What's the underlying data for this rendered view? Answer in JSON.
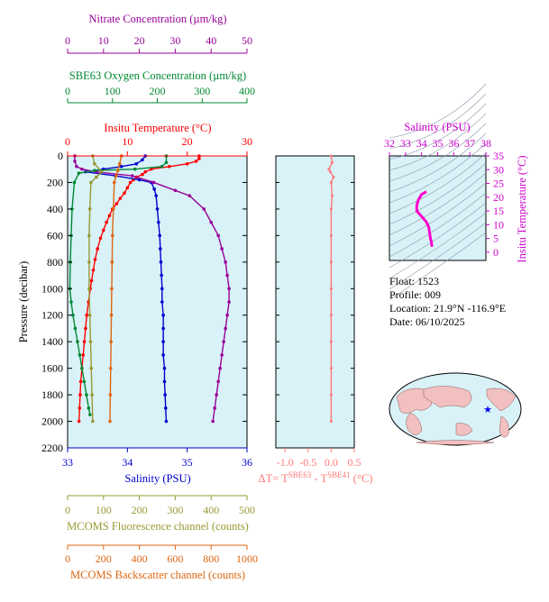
{
  "chart_data": [
    {
      "type": "line",
      "name": "profile",
      "ylabel": "Pressure (decibar)",
      "ylim": [
        2200,
        0
      ],
      "y_ticks": [
        0,
        200,
        400,
        600,
        800,
        1000,
        1200,
        1400,
        1600,
        1800,
        2000,
        2200
      ],
      "axes": {
        "temperature": {
          "title": "Insitu Temperature (°C)",
          "range": [
            0,
            30
          ],
          "ticks": [
            0,
            10,
            20,
            30
          ],
          "color": "#ff0000"
        },
        "salinity": {
          "title": "Salinity (PSU)",
          "range": [
            33,
            36
          ],
          "ticks": [
            33,
            34,
            35,
            36
          ],
          "color": "#0000cc"
        },
        "nitrate": {
          "title": "Nitrate Concentration (µm/kg)",
          "range": [
            0,
            50
          ],
          "ticks": [
            0,
            10,
            20,
            30,
            40,
            50
          ],
          "color": "#990099"
        },
        "oxygen": {
          "title": "SBE63 Oxygen Concentration (µm/kg)",
          "range": [
            0,
            400
          ],
          "ticks": [
            0,
            100,
            200,
            300,
            400
          ],
          "color": "#008833"
        },
        "fluorescence": {
          "title": "MCOMS Fluorescence channel (counts)",
          "range": [
            0,
            500
          ],
          "ticks": [
            0,
            100,
            200,
            300,
            400,
            500
          ],
          "color": "#999933"
        },
        "backscatter": {
          "title": "MCOMS Backscatter channel (counts)",
          "range": [
            0,
            1000
          ],
          "ticks": [
            0,
            200,
            400,
            600,
            800,
            1000
          ],
          "color": "#dd6611"
        }
      },
      "series": [
        {
          "key": "temperature",
          "color": "#ff0000",
          "points": [
            [
              22,
              0
            ],
            [
              22,
              20
            ],
            [
              21.5,
              40
            ],
            [
              20,
              60
            ],
            [
              17,
              80
            ],
            [
              14,
              100
            ],
            [
              13,
              120
            ],
            [
              12.5,
              140
            ],
            [
              11.5,
              160
            ],
            [
              11,
              180
            ],
            [
              10.5,
              200
            ],
            [
              10,
              240
            ],
            [
              9.5,
              280
            ],
            [
              8.8,
              320
            ],
            [
              8.2,
              360
            ],
            [
              7.5,
              400
            ],
            [
              7,
              450
            ],
            [
              6.5,
              500
            ],
            [
              6,
              560
            ],
            [
              5.5,
              620
            ],
            [
              5,
              700
            ],
            [
              4.6,
              780
            ],
            [
              4.3,
              860
            ],
            [
              4,
              940
            ],
            [
              3.8,
              1000
            ],
            [
              3.5,
              1100
            ],
            [
              3.2,
              1200
            ],
            [
              3,
              1300
            ],
            [
              2.8,
              1400
            ],
            [
              2.6,
              1500
            ],
            [
              2.4,
              1600
            ],
            [
              2.2,
              1700
            ],
            [
              2.1,
              1800
            ],
            [
              2,
              1900
            ],
            [
              1.9,
              2000
            ]
          ]
        },
        {
          "key": "salinity",
          "color": "#0000cc",
          "points": [
            [
              34.3,
              0
            ],
            [
              34.25,
              30
            ],
            [
              34.15,
              60
            ],
            [
              33.9,
              80
            ],
            [
              33.6,
              100
            ],
            [
              33.3,
              120
            ],
            [
              33.8,
              150
            ],
            [
              34.2,
              180
            ],
            [
              34.4,
              200
            ],
            [
              34.45,
              250
            ],
            [
              34.48,
              300
            ],
            [
              34.5,
              400
            ],
            [
              34.52,
              500
            ],
            [
              34.54,
              600
            ],
            [
              34.55,
              700
            ],
            [
              34.56,
              800
            ],
            [
              34.57,
              900
            ],
            [
              34.58,
              1000
            ],
            [
              34.58,
              1100
            ],
            [
              34.6,
              1200
            ],
            [
              34.6,
              1300
            ],
            [
              34.6,
              1400
            ],
            [
              34.6,
              1500
            ],
            [
              34.62,
              1600
            ],
            [
              34.62,
              1700
            ],
            [
              34.63,
              1800
            ],
            [
              34.64,
              1900
            ],
            [
              34.65,
              2000
            ]
          ]
        },
        {
          "key": "nitrate",
          "color": "#990099",
          "points": [
            [
              2,
              0
            ],
            [
              2,
              40
            ],
            [
              2.5,
              80
            ],
            [
              4,
              100
            ],
            [
              8,
              120
            ],
            [
              18,
              150
            ],
            [
              24,
              200
            ],
            [
              30,
              260
            ],
            [
              34,
              300
            ],
            [
              38,
              400
            ],
            [
              40,
              500
            ],
            [
              42,
              600
            ],
            [
              43,
              700
            ],
            [
              44,
              800
            ],
            [
              44.5,
              900
            ],
            [
              45,
              1000
            ],
            [
              45,
              1100
            ],
            [
              44.5,
              1200
            ],
            [
              44,
              1300
            ],
            [
              43.5,
              1400
            ],
            [
              43,
              1500
            ],
            [
              42.5,
              1600
            ],
            [
              42,
              1700
            ],
            [
              41.5,
              1800
            ],
            [
              41,
              1900
            ],
            [
              40.5,
              2000
            ]
          ]
        },
        {
          "key": "oxygen",
          "color": "#008833",
          "points": [
            [
              220,
              0
            ],
            [
              220,
              50
            ],
            [
              210,
              80
            ],
            [
              150,
              100
            ],
            [
              60,
              110
            ],
            [
              25,
              130
            ],
            [
              15,
              200
            ],
            [
              10,
              400
            ],
            [
              8,
              600
            ],
            [
              6,
              800
            ],
            [
              5,
              1000
            ],
            [
              8,
              1100
            ],
            [
              12,
              1200
            ],
            [
              17,
              1300
            ],
            [
              22,
              1400
            ],
            [
              27,
              1500
            ],
            [
              32,
              1600
            ],
            [
              37,
              1700
            ],
            [
              42,
              1800
            ],
            [
              47,
              1900
            ],
            [
              50,
              1950
            ]
          ]
        },
        {
          "key": "fluorescence",
          "color": "#999933",
          "points": [
            [
              70,
              0
            ],
            [
              75,
              60
            ],
            [
              95,
              120
            ],
            [
              80,
              160
            ],
            [
              65,
              200
            ],
            [
              62,
              400
            ],
            [
              60,
              600
            ],
            [
              60,
              800
            ],
            [
              60,
              1000
            ],
            [
              62,
              1200
            ],
            [
              64,
              1400
            ],
            [
              66,
              1600
            ],
            [
              68,
              1800
            ],
            [
              70,
              2000
            ]
          ]
        },
        {
          "key": "backscatter",
          "color": "#dd6611",
          "points": [
            [
              300,
              0
            ],
            [
              290,
              60
            ],
            [
              280,
              110
            ],
            [
              270,
              150
            ],
            [
              260,
              200
            ],
            [
              255,
              400
            ],
            [
              250,
              600
            ],
            [
              248,
              800
            ],
            [
              246,
              1000
            ],
            [
              244,
              1200
            ],
            [
              242,
              1400
            ],
            [
              240,
              1600
            ],
            [
              238,
              1800
            ],
            [
              236,
              2000
            ]
          ]
        }
      ]
    },
    {
      "type": "line",
      "name": "temperature-difference",
      "xlabel": "ΔT= T^SBE63 - T^SBE41 (°C)",
      "xlim": [
        -1.2,
        0.5
      ],
      "x_ticks": [
        -1.0,
        -0.5,
        0.0,
        0.5
      ],
      "x_tick_labels": [
        "-1.0",
        "-0.5",
        "0.0",
        "0.5"
      ],
      "color": "#ff7777",
      "points": [
        [
          0,
          0
        ],
        [
          0.02,
          50
        ],
        [
          -0.05,
          100
        ],
        [
          -0.02,
          120
        ],
        [
          0.05,
          160
        ],
        [
          0,
          200
        ],
        [
          0.02,
          300
        ],
        [
          0,
          400
        ],
        [
          0,
          600
        ],
        [
          0,
          800
        ],
        [
          0,
          1000
        ],
        [
          0,
          1200
        ],
        [
          0,
          1400
        ],
        [
          0,
          1600
        ],
        [
          0,
          1800
        ],
        [
          0,
          2000
        ]
      ]
    },
    {
      "type": "line",
      "name": "theta-s",
      "xlabel": "Salinity (PSU)",
      "ylabel": "Insitu Temperature (°C)",
      "xlim": [
        32,
        38
      ],
      "ylim": [
        -3,
        35
      ],
      "x_ticks": [
        32,
        33,
        34,
        35,
        36,
        37,
        38
      ],
      "y_ticks": [
        0,
        5,
        10,
        15,
        20,
        25,
        30,
        35
      ],
      "color": "#ff00cc",
      "points": [
        [
          34.3,
          22
        ],
        [
          34.0,
          21
        ],
        [
          33.8,
          19
        ],
        [
          33.7,
          17
        ],
        [
          33.7,
          15
        ],
        [
          34.0,
          13
        ],
        [
          34.3,
          11
        ],
        [
          34.45,
          9
        ],
        [
          34.5,
          7
        ],
        [
          34.55,
          5
        ],
        [
          34.6,
          4
        ],
        [
          34.62,
          3
        ],
        [
          34.65,
          2
        ]
      ]
    }
  ],
  "info": {
    "float": "Float:  1523",
    "profile": "Profile:  009",
    "location": "Location:  21.9°N  -116.9°E",
    "date": "Date:  06/10/2025"
  },
  "map": {
    "marker": "blue-star"
  }
}
